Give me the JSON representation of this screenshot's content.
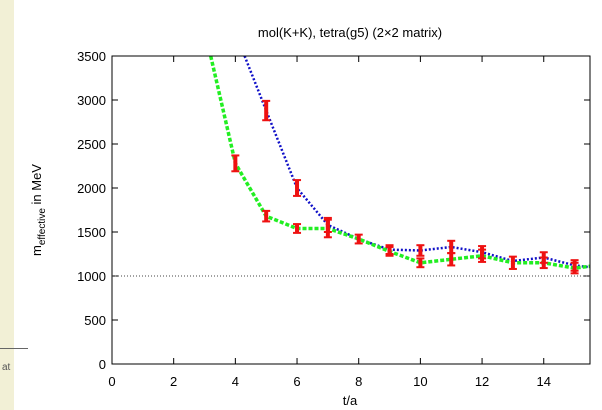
{
  "background_fragment": {
    "text": "at"
  },
  "colors": {
    "series_blue": "#1010c8",
    "series_green": "#22ee22",
    "error_bars": "#ee1111",
    "reference_line": "#444444",
    "page_background": "#f2f0d6"
  },
  "chart_data": {
    "type": "line",
    "title": "mol(K+K), tetra(g5) (2×2 matrix)",
    "xlabel": "t/a",
    "ylabel_main": "m",
    "ylabel_sub": "effective",
    "ylabel_rest": " in MeV",
    "xlim": [
      0,
      15.5
    ],
    "ylim": [
      0,
      3500
    ],
    "xticks": [
      0,
      2,
      4,
      6,
      8,
      10,
      12,
      14
    ],
    "yticks": [
      0,
      500,
      1000,
      1500,
      2000,
      2500,
      3000,
      3500
    ],
    "grid": false,
    "legend": "none",
    "reference_line": {
      "y": 1000,
      "style": "dotted"
    },
    "series": [
      {
        "color": "#1010c8",
        "style": "dotted",
        "line_points": [
          [
            4.3,
            3500
          ],
          [
            5,
            2880
          ],
          [
            6,
            2000
          ],
          [
            7,
            1580
          ],
          [
            8,
            1420
          ],
          [
            9,
            1300
          ],
          [
            10,
            1290
          ],
          [
            11,
            1330
          ],
          [
            12,
            1270
          ],
          [
            13,
            1170
          ],
          [
            14,
            1210
          ],
          [
            15,
            1120
          ],
          [
            15.5,
            1100
          ]
        ],
        "error_points": [
          {
            "x": 5,
            "y": 2880,
            "err": 110
          },
          {
            "x": 6,
            "y": 2000,
            "err": 90
          },
          {
            "x": 7,
            "y": 1580,
            "err": 80
          },
          {
            "x": 9,
            "y": 1300,
            "err": 50
          },
          {
            "x": 10,
            "y": 1290,
            "err": 60
          },
          {
            "x": 11,
            "y": 1330,
            "err": 70
          },
          {
            "x": 12,
            "y": 1270,
            "err": 70
          },
          {
            "x": 14,
            "y": 1210,
            "err": 60
          },
          {
            "x": 15,
            "y": 1120,
            "err": 60
          }
        ]
      },
      {
        "color": "#22ee22",
        "style": "dashed",
        "line_points": [
          [
            3.2,
            3500
          ],
          [
            4,
            2280
          ],
          [
            5,
            1680
          ],
          [
            6,
            1540
          ],
          [
            7,
            1540
          ],
          [
            8,
            1420
          ],
          [
            9,
            1280
          ],
          [
            10,
            1150
          ],
          [
            11,
            1190
          ],
          [
            12,
            1230
          ],
          [
            13,
            1150
          ],
          [
            14,
            1150
          ],
          [
            15,
            1090
          ],
          [
            15.5,
            1110
          ]
        ],
        "error_points": [
          {
            "x": 4,
            "y": 2280,
            "err": 90
          },
          {
            "x": 5,
            "y": 1680,
            "err": 60
          },
          {
            "x": 6,
            "y": 1540,
            "err": 50
          },
          {
            "x": 7,
            "y": 1540,
            "err": 100
          },
          {
            "x": 8,
            "y": 1420,
            "err": 50
          },
          {
            "x": 9,
            "y": 1280,
            "err": 50
          },
          {
            "x": 10,
            "y": 1150,
            "err": 50
          },
          {
            "x": 11,
            "y": 1190,
            "err": 70
          },
          {
            "x": 12,
            "y": 1230,
            "err": 70
          },
          {
            "x": 13,
            "y": 1150,
            "err": 70
          },
          {
            "x": 14,
            "y": 1150,
            "err": 60
          },
          {
            "x": 15,
            "y": 1090,
            "err": 60
          }
        ]
      }
    ]
  }
}
